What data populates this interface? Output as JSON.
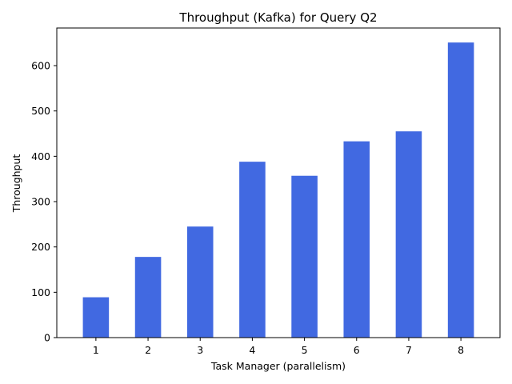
{
  "chart_data": {
    "type": "bar",
    "title": "Throughput (Kafka) for Query Q2",
    "xlabel": "Task Manager (parallelism)",
    "ylabel": "Throughput",
    "categories": [
      "1",
      "2",
      "3",
      "4",
      "5",
      "6",
      "7",
      "8"
    ],
    "values": [
      89,
      178,
      245,
      388,
      357,
      433,
      455,
      651
    ],
    "ylim": [
      0,
      683
    ],
    "yticks": [
      0,
      100,
      200,
      300,
      400,
      500,
      600
    ],
    "ytick_labels": [
      "0",
      "100",
      "200",
      "300",
      "400",
      "500",
      "600"
    ],
    "bar_color": "#4169e1",
    "grid": false,
    "legend": "none"
  }
}
